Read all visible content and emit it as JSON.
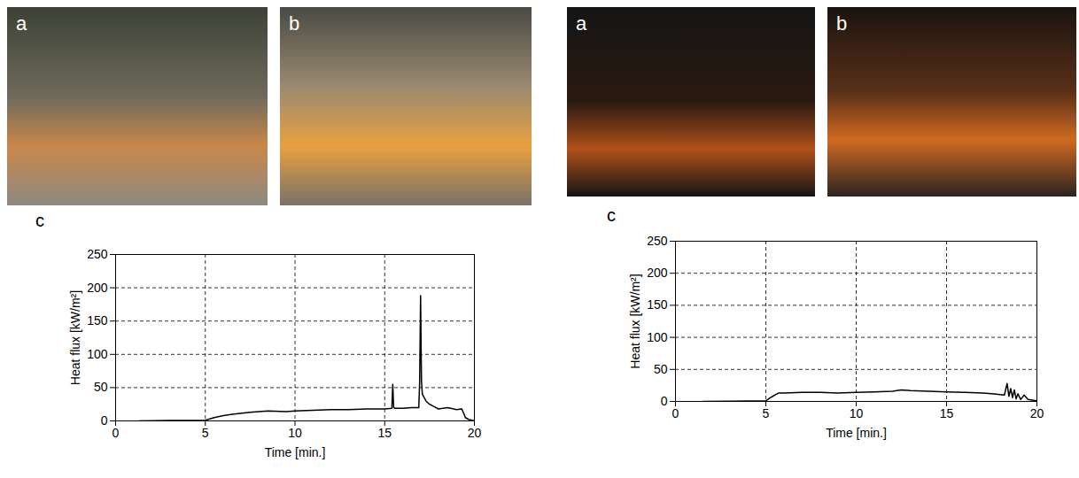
{
  "chart_data": [
    {
      "type": "line",
      "photo_labels": [
        "a",
        "b"
      ],
      "panel_label": "c",
      "x_label": "Time [min.]",
      "y_label": "Heat flux [kW/m²]",
      "xlim": [
        0,
        20
      ],
      "xticks": [
        0,
        5,
        10,
        15,
        20
      ],
      "ylim": [
        0,
        250
      ],
      "yticks": [
        0,
        50,
        100,
        150,
        200,
        250
      ],
      "grid": true,
      "color": "#000000",
      "x": [
        1.3,
        3,
        5,
        5.5,
        6,
        6.5,
        7.5,
        8.5,
        9.5,
        10,
        11,
        12,
        13,
        14,
        15,
        15.4,
        15.45,
        15.5,
        15.55,
        16,
        16.5,
        16.9,
        16.95,
        17.0,
        17.05,
        17.1,
        17.3,
        17.5,
        18,
        18.5,
        19,
        19.3,
        19.5,
        19.7,
        20
      ],
      "values": [
        0,
        0.5,
        1,
        5,
        8,
        10,
        13,
        15,
        14,
        15,
        16,
        17,
        17,
        18,
        18,
        19,
        55,
        20,
        19,
        19,
        20,
        20,
        60,
        188,
        60,
        40,
        30,
        25,
        18,
        20,
        17,
        18,
        5,
        2,
        0
      ]
    },
    {
      "type": "line",
      "photo_labels": [
        "a",
        "b"
      ],
      "panel_label": "c",
      "x_label": "Time [min.]",
      "y_label": "Heat flux [kW/m²]",
      "xlim": [
        0,
        20
      ],
      "xticks": [
        0,
        5,
        10,
        15,
        20
      ],
      "ylim": [
        0,
        250
      ],
      "yticks": [
        0,
        50,
        100,
        150,
        200,
        250
      ],
      "grid": true,
      "color": "#000000",
      "x": [
        1.5,
        3,
        5,
        5.2,
        5.5,
        5.7,
        6,
        7,
        8,
        9,
        10,
        11,
        12,
        12.5,
        13,
        14,
        15,
        16,
        17,
        17.5,
        18.2,
        18.35,
        18.45,
        18.55,
        18.65,
        18.75,
        18.85,
        18.95,
        19.1,
        19.3,
        19.5,
        20
      ],
      "values": [
        0,
        0.5,
        1,
        5,
        10,
        13,
        13,
        14,
        14,
        13,
        14,
        15,
        16,
        18,
        17,
        16,
        15,
        14,
        13,
        12,
        10,
        28,
        8,
        20,
        6,
        18,
        4,
        12,
        3,
        10,
        3,
        1
      ]
    }
  ]
}
